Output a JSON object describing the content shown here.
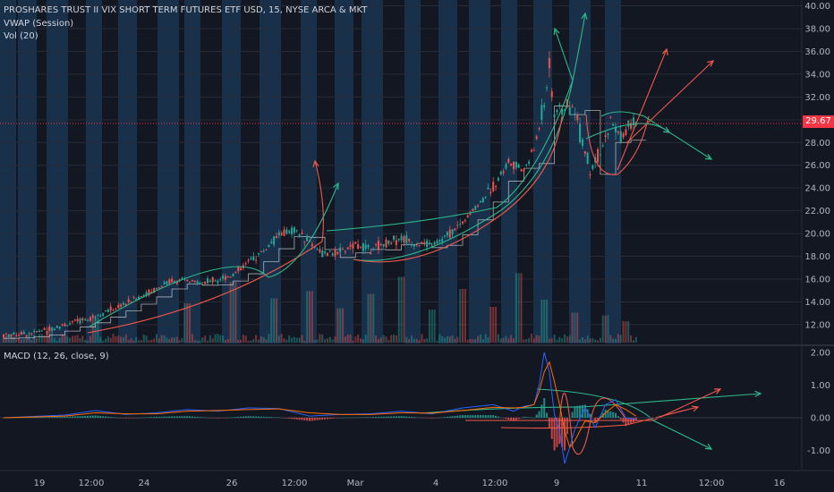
{
  "legend": {
    "title": "PROSHARES TRUST II VIX SHORT TERM FUTURES ETF USD, 15, NYSE ARCA & MKT",
    "vwap": "VWAP (Session)",
    "volume": "Vol (20)",
    "macd": "MACD (12, 26, close, 9)"
  },
  "last_price": "29.67",
  "colors": {
    "background": "#131722",
    "session_band": "#1b3552",
    "up": "#26a69a",
    "down": "#ef5350",
    "macd_line": "#2962ff",
    "signal_line": "#ff6d00",
    "drawing_red": "#f0584a",
    "drawing_green": "#2eb88a",
    "last_price_line": "#f23645",
    "axis_text": "#b2b5be"
  },
  "chart_data": [
    {
      "type": "candlestick",
      "title": "PROSHARES TRUST II VIX SHORT TERM FUTURES ETF USD, 15, NYSE ARCA & MKT",
      "x_tick_labels": [
        "19",
        "12:00",
        "24",
        "26",
        "12:00",
        "Mar",
        "4",
        "12:00",
        "9",
        "11",
        "12:00",
        "16"
      ],
      "y_tick_labels": [
        "12.00",
        "14.00",
        "16.00",
        "18.00",
        "20.00",
        "22.00",
        "24.00",
        "26.00",
        "28.00",
        "30.00",
        "32.00",
        "34.00",
        "36.00",
        "38.00",
        "40.00"
      ],
      "ylim": [
        10.5,
        40.2
      ],
      "last_price": 29.67,
      "price_path": [
        [
          0,
          11.1
        ],
        [
          6,
          11.3
        ],
        [
          9,
          11.6
        ],
        [
          12,
          12.0
        ],
        [
          15,
          12.3
        ],
        [
          18,
          12.8
        ],
        [
          21,
          13.3
        ],
        [
          24,
          13.9
        ],
        [
          27,
          14.5
        ],
        [
          30,
          15.2
        ],
        [
          33,
          15.9
        ],
        [
          36,
          15.8
        ],
        [
          39,
          15.7
        ],
        [
          42,
          16.0
        ],
        [
          45,
          16.4
        ],
        [
          48,
          17.5
        ],
        [
          51,
          18.5
        ],
        [
          54,
          19.9
        ],
        [
          57,
          20.3
        ],
        [
          60,
          19.3
        ],
        [
          63,
          18.1
        ],
        [
          66,
          18.4
        ],
        [
          69,
          19.0
        ],
        [
          72,
          18.7
        ],
        [
          75,
          19.2
        ],
        [
          78,
          19.6
        ],
        [
          81,
          19.1
        ],
        [
          84,
          19.0
        ],
        [
          87,
          19.8
        ],
        [
          90,
          21.0
        ],
        [
          93,
          22.5
        ],
        [
          96,
          24.2
        ],
        [
          99,
          26.3
        ],
        [
          102,
          25.5
        ],
        [
          104,
          27.4
        ],
        [
          106,
          31.5
        ],
        [
          107,
          34.5
        ],
        [
          108,
          30.5
        ],
        [
          110,
          31.0
        ],
        [
          112,
          31.1
        ],
        [
          113,
          29.0
        ],
        [
          115,
          25.5
        ],
        [
          117,
          26.8
        ],
        [
          119,
          29.8
        ],
        [
          121,
          28.5
        ],
        [
          123,
          29.4
        ],
        [
          124,
          29.67
        ]
      ],
      "volume": {
        "spikes": [
          [
            9,
            0.22
          ],
          [
            18,
            0.35
          ],
          [
            36,
            0.55
          ],
          [
            45,
            0.85
          ],
          [
            53,
            0.62
          ],
          [
            60,
            0.72
          ],
          [
            66,
            0.48
          ],
          [
            72,
            0.68
          ],
          [
            78,
            0.92
          ],
          [
            84,
            0.46
          ],
          [
            90,
            0.75
          ],
          [
            96,
            0.5
          ],
          [
            101,
            0.97
          ],
          [
            106,
            0.6
          ],
          [
            112,
            0.42
          ],
          [
            118,
            0.38
          ],
          [
            122,
            0.3
          ]
        ]
      }
    },
    {
      "type": "macd",
      "title": "MACD (12, 26, close, 9)",
      "y_tick_labels": [
        "-1.00",
        "0.00",
        "1.00",
        "2.00"
      ],
      "ylim": [
        -1.45,
        2.05
      ],
      "macd_path": [
        [
          0,
          0.0
        ],
        [
          12,
          0.08
        ],
        [
          18,
          0.22
        ],
        [
          24,
          0.1
        ],
        [
          30,
          0.15
        ],
        [
          36,
          0.25
        ],
        [
          42,
          0.2
        ],
        [
          48,
          0.3
        ],
        [
          54,
          0.28
        ],
        [
          60,
          0.05
        ],
        [
          66,
          0.1
        ],
        [
          72,
          0.12
        ],
        [
          78,
          0.2
        ],
        [
          84,
          0.12
        ],
        [
          90,
          0.3
        ],
        [
          96,
          0.4
        ],
        [
          100,
          0.2
        ],
        [
          102,
          0.35
        ],
        [
          104,
          0.4
        ],
        [
          105,
          1.0
        ],
        [
          106,
          2.0
        ],
        [
          107,
          1.4
        ],
        [
          108,
          0.1
        ],
        [
          109,
          -0.4
        ],
        [
          110,
          -1.4
        ],
        [
          111,
          -0.9
        ],
        [
          112,
          -0.35
        ],
        [
          114,
          0.3
        ],
        [
          116,
          -0.3
        ],
        [
          118,
          0.4
        ],
        [
          120,
          0.55
        ],
        [
          122,
          0.0
        ],
        [
          124,
          -0.05
        ]
      ],
      "signal_path": [
        [
          0,
          0.0
        ],
        [
          12,
          0.05
        ],
        [
          18,
          0.15
        ],
        [
          24,
          0.12
        ],
        [
          30,
          0.12
        ],
        [
          36,
          0.2
        ],
        [
          42,
          0.22
        ],
        [
          48,
          0.25
        ],
        [
          54,
          0.27
        ],
        [
          60,
          0.15
        ],
        [
          66,
          0.1
        ],
        [
          72,
          0.1
        ],
        [
          78,
          0.15
        ],
        [
          84,
          0.14
        ],
        [
          90,
          0.22
        ],
        [
          96,
          0.32
        ],
        [
          100,
          0.3
        ],
        [
          102,
          0.32
        ],
        [
          104,
          0.4
        ],
        [
          105,
          0.8
        ],
        [
          106,
          1.4
        ],
        [
          107,
          1.7
        ],
        [
          108,
          1.1
        ],
        [
          109,
          0.4
        ],
        [
          110,
          -0.4
        ],
        [
          111,
          -0.9
        ],
        [
          112,
          -0.7
        ],
        [
          114,
          -0.1
        ],
        [
          116,
          -0.15
        ],
        [
          118,
          0.15
        ],
        [
          120,
          0.4
        ],
        [
          122,
          0.25
        ],
        [
          124,
          0.05
        ]
      ]
    }
  ]
}
